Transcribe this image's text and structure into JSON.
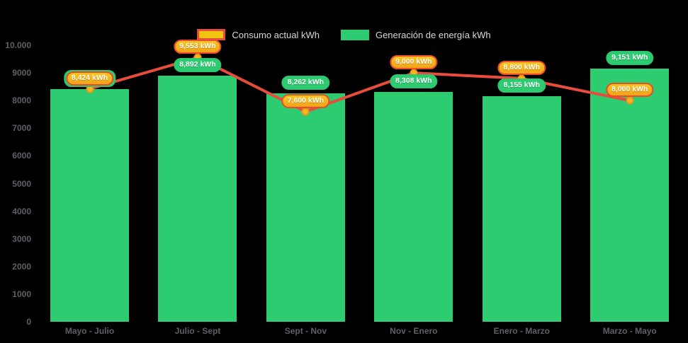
{
  "app": {
    "background": "#000000"
  },
  "legend": {
    "items": [
      {
        "label": "Consumo actual kWh",
        "swatch_color": "#f1c40f",
        "swatch_border": "#e74c3c"
      },
      {
        "label": "Generación de energía kWh",
        "swatch_color": "#2ecc71"
      }
    ]
  },
  "chart_data": {
    "type": "bar",
    "subtype": "combo bar + line",
    "title": "",
    "xlabel": "",
    "ylabel": "",
    "categories": [
      "Mayo - Julio",
      "Julio - Sept",
      "Sept - Nov",
      "Nov - Enero",
      "Enero - Marzo",
      "Marzo - Mayo"
    ],
    "series": [
      {
        "name": "Generación de energía kWh",
        "type": "bar",
        "color": "#2ecc71",
        "values": [
          8424,
          8892,
          8262,
          8308,
          8155,
          9151
        ],
        "value_labels": [
          "8,424 kWh",
          "8,892 kWh",
          "8,262 kWh",
          "8,308 kWh",
          "8,155 kWh",
          "9,151 kWh"
        ],
        "label_style": {
          "background": "#2ecc71",
          "text": "#ffffff"
        }
      },
      {
        "name": "Consumo actual kWh",
        "type": "line",
        "color": "#e74c3c",
        "marker_color": "#f6b91d",
        "marker_border": "#ef931c",
        "values": [
          8424,
          9553,
          7600,
          9000,
          8800,
          8000
        ],
        "value_labels": [
          "8,424 kWh",
          "9,553 kWh",
          "7,600 kWh",
          "9,000 kWh",
          "8,800 kWh",
          "8,000 kWh"
        ],
        "label_style": {
          "background": "#f5ab1c",
          "border": "#ea4b2d",
          "text": "#ffffff"
        }
      }
    ],
    "ylim": [
      0,
      10000
    ],
    "y_ticks": [
      {
        "value": 10000,
        "label": "10.000"
      },
      {
        "value": 9000,
        "label": "9000"
      },
      {
        "value": 8000,
        "label": "8000"
      },
      {
        "value": 7000,
        "label": "7000"
      },
      {
        "value": 6000,
        "label": "6000"
      },
      {
        "value": 5000,
        "label": "5000"
      },
      {
        "value": 4000,
        "label": "4000"
      },
      {
        "value": 3000,
        "label": "3000"
      },
      {
        "value": 2000,
        "label": "2000"
      },
      {
        "value": 1000,
        "label": "1000"
      },
      {
        "value": 0,
        "label": "0"
      }
    ],
    "grid": false,
    "legend_position": "top-center",
    "background": "#000000"
  }
}
